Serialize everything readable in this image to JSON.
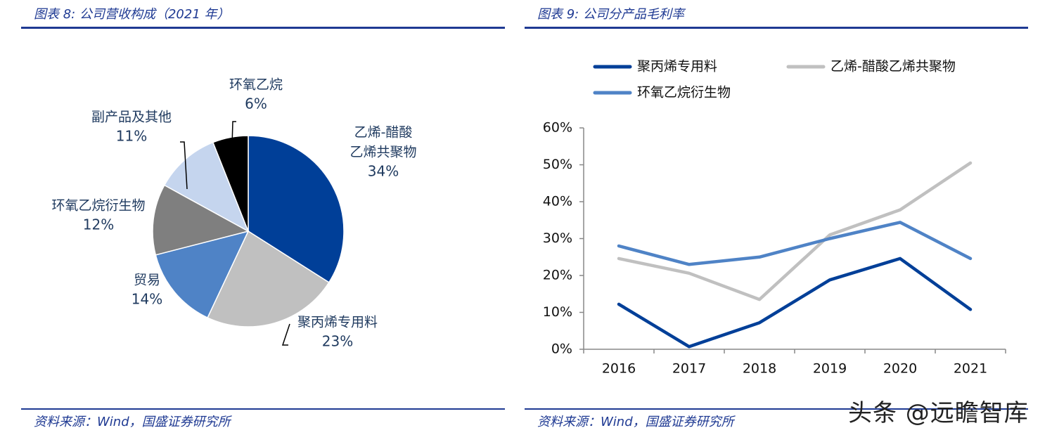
{
  "left_panel": {
    "title": "图表 8:  公司营收构成（2021 年）",
    "source": "资料来源：Wind，国盛证券研究所"
  },
  "right_panel": {
    "title": "图表 9:  公司分产品毛利率",
    "source": "资料来源：Wind，国盛证券研究所"
  },
  "watermark": "头条 @远瞻智库",
  "chart_data": [
    {
      "type": "pie",
      "title": "",
      "slices": [
        {
          "label_lines": [
            "乙烯-醋酸",
            "乙烯共聚物"
          ],
          "pct_label": "34%",
          "value": 34,
          "color": "#003f98"
        },
        {
          "label_lines": [
            "聚丙烯专用料"
          ],
          "pct_label": "23%",
          "value": 23,
          "color": "#c0c0c0"
        },
        {
          "label_lines": [
            "贸易"
          ],
          "pct_label": "14%",
          "value": 14,
          "color": "#4f83c6"
        },
        {
          "label_lines": [
            "环氧乙烷衍生物"
          ],
          "pct_label": "12%",
          "value": 12,
          "color": "#7f7f7f"
        },
        {
          "label_lines": [
            "副产品及其他"
          ],
          "pct_label": "11%",
          "value": 11,
          "color": "#c5d5ee"
        },
        {
          "label_lines": [
            "环氧乙烷"
          ],
          "pct_label": "6%",
          "value": 6,
          "color": "#000000"
        }
      ]
    },
    {
      "type": "line",
      "title": "",
      "categories": [
        "2016",
        "2017",
        "2018",
        "2019",
        "2020",
        "2021"
      ],
      "ylim": [
        0,
        60
      ],
      "yticks": [
        0,
        10,
        20,
        30,
        40,
        50,
        60
      ],
      "ytick_labels": [
        "0%",
        "10%",
        "20%",
        "30%",
        "40%",
        "50%",
        "60%"
      ],
      "legend_position": "top",
      "series": [
        {
          "name": "聚丙烯专用料",
          "values": [
            12.2,
            0.7,
            7.2,
            18.8,
            24.6,
            10.8
          ],
          "color": "#003f98"
        },
        {
          "name": "乙烯-醋酸乙烯共聚物",
          "values": [
            24.6,
            20.6,
            13.5,
            31.0,
            37.8,
            50.5
          ],
          "color": "#c0c0c0"
        },
        {
          "name": "环氧乙烷衍生物",
          "values": [
            28.0,
            23.0,
            25.0,
            30.0,
            34.4,
            24.6
          ],
          "color": "#4f83c6"
        }
      ]
    }
  ]
}
